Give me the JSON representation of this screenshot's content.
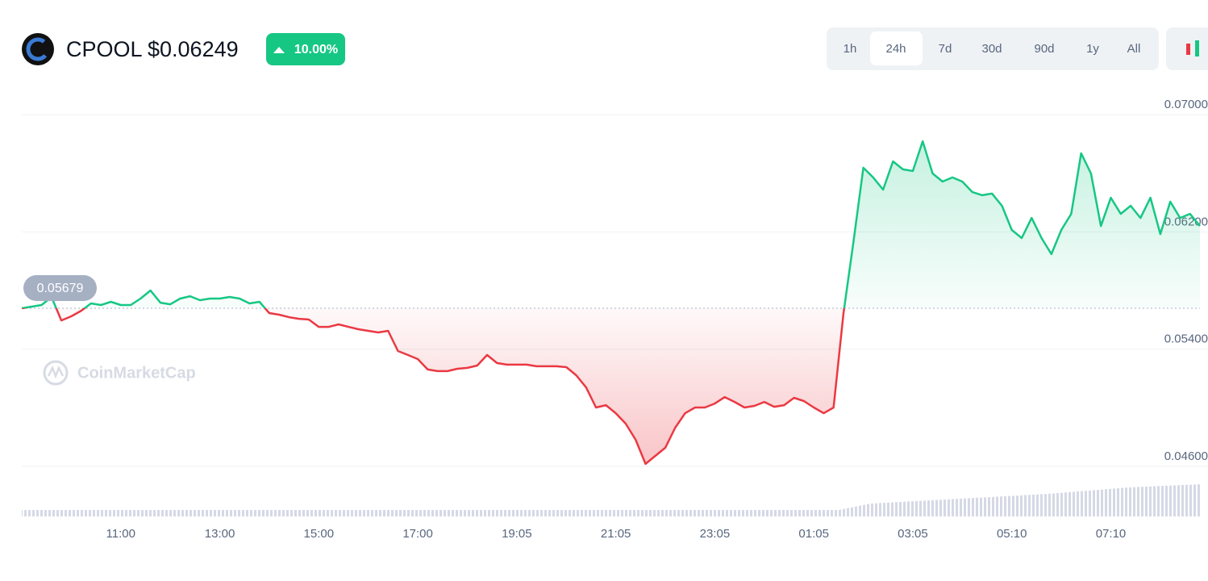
{
  "header": {
    "symbol": "CPOOL",
    "price": "$0.06249",
    "change": "10.00%",
    "ranges": [
      "1h",
      "24h",
      "7d",
      "30d",
      "90d",
      "1y",
      "All"
    ]
  },
  "watermark": "CoinMarketCap",
  "chart_data": {
    "type": "line",
    "series": [
      {
        "name": "CPOOL",
        "values": [
          0.05679,
          0.0569,
          0.05701,
          0.05756,
          0.05596,
          0.05624,
          0.05662,
          0.05712,
          0.05701,
          0.05723,
          0.05701,
          0.05701,
          0.05745,
          0.058,
          0.05717,
          0.05706,
          0.05745,
          0.05761,
          0.05734,
          0.05745,
          0.05745,
          0.05756,
          0.05745,
          0.05712,
          0.05723,
          0.05646,
          0.05635,
          0.05618,
          0.05607,
          0.05602,
          0.05552,
          0.05552,
          0.05569,
          0.05552,
          0.05536,
          0.05525,
          0.05514,
          0.05525,
          0.05387,
          0.0536,
          0.05332,
          0.05261,
          0.0525,
          0.0525,
          0.05266,
          0.05272,
          0.05288,
          0.0536,
          0.05305,
          0.05294,
          0.05294,
          0.05294,
          0.05283,
          0.05283,
          0.05283,
          0.05277,
          0.05222,
          0.05139,
          0.05002,
          0.05018,
          0.04963,
          0.04892,
          0.04782,
          0.04617,
          0.04672,
          0.04727,
          0.04864,
          0.04963,
          0.05002,
          0.05002,
          0.05029,
          0.05073,
          0.0504,
          0.05002,
          0.05013,
          0.0504,
          0.05007,
          0.05018,
          0.05068,
          0.05046,
          0.05002,
          0.04963,
          0.05002,
          0.05646,
          0.0613,
          0.06637,
          0.06571,
          0.06488,
          0.06681,
          0.06626,
          0.06615,
          0.06818,
          0.06598,
          0.06543,
          0.06571,
          0.06543,
          0.06472,
          0.0645,
          0.06461,
          0.06378,
          0.06213,
          0.06158,
          0.06295,
          0.06158,
          0.06048,
          0.06213,
          0.06323,
          0.06736,
          0.06598,
          0.0624,
          0.06433,
          0.06323,
          0.06378,
          0.06295,
          0.06433,
          0.06185,
          0.06406,
          0.06295,
          0.06323,
          0.0624
        ]
      }
    ],
    "baseline": 0.05679,
    "up_color": "#16c784",
    "down_color": "#ea3943",
    "ylim": [
      0.046,
      0.07
    ],
    "yticks": [
      {
        "value": 0.046,
        "label": "0.04600"
      },
      {
        "value": 0.054,
        "label": "0.05400"
      },
      {
        "value": 0.062,
        "label": "0.06200"
      },
      {
        "value": 0.07,
        "label": "0.07000"
      }
    ],
    "xticks": [
      {
        "value": 10,
        "label": "11:00"
      },
      {
        "value": 20,
        "label": "13:00"
      },
      {
        "value": 30,
        "label": "15:00"
      },
      {
        "value": 40,
        "label": "17:00"
      },
      {
        "value": 50,
        "label": "19:05"
      },
      {
        "value": 60,
        "label": "21:05"
      },
      {
        "value": 70,
        "label": "23:05"
      },
      {
        "value": 80,
        "label": "01:05"
      },
      {
        "value": 90,
        "label": "03:05"
      },
      {
        "value": 100,
        "label": "05:10"
      },
      {
        "value": 110,
        "label": "07:10"
      }
    ],
    "grid": true
  }
}
